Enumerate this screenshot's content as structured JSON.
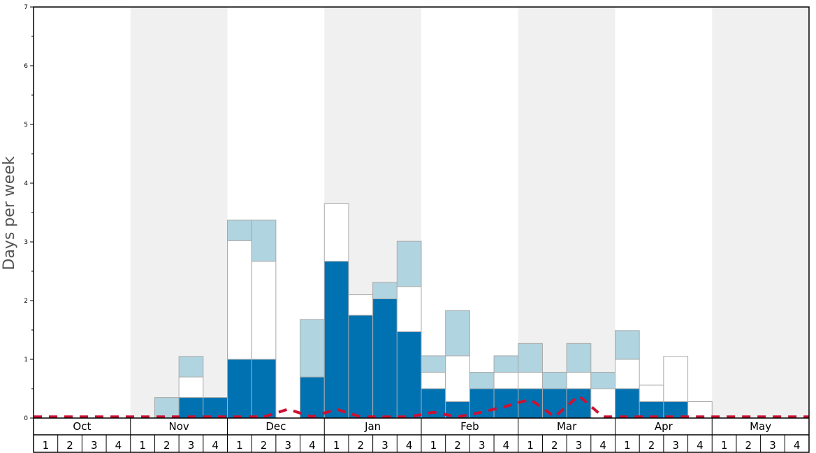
{
  "chart_data": {
    "type": "bar",
    "ylabel": "Days per week",
    "ylim": [
      0,
      7
    ],
    "yticks": [
      0,
      1,
      2,
      3,
      4,
      5,
      6,
      7
    ],
    "months": [
      "Oct",
      "Nov",
      "Dec",
      "Jan",
      "Feb",
      "Mar",
      "Apr",
      "May"
    ],
    "week_labels": [
      "1",
      "2",
      "3",
      "4"
    ],
    "grid": false,
    "colors": {
      "dark_blue": "#0072b2",
      "white": "#ffffff",
      "light_blue": "#b0d4e0",
      "band": "#f0f0f0",
      "dashed_line": "#cc1133"
    },
    "series": [
      {
        "color": "dark_blue",
        "values": [
          0,
          0,
          0,
          0,
          0,
          0,
          0.35,
          0.35,
          1.0,
          1.0,
          0,
          0.7,
          2.67,
          1.75,
          2.03,
          1.47,
          0.5,
          0.28,
          0.5,
          0.5,
          0.5,
          0.5,
          0.5,
          0,
          0.5,
          0.28,
          0.28,
          0,
          0,
          0,
          0,
          0
        ]
      },
      {
        "color": "white",
        "values": [
          0,
          0,
          0,
          0,
          0,
          0,
          0.35,
          0,
          2.02,
          1.67,
          0,
          0,
          0.98,
          0.35,
          0,
          0.77,
          0.28,
          0.78,
          0,
          0.28,
          0.28,
          0,
          0.28,
          0.5,
          0.5,
          0.28,
          0.77,
          0.28,
          0,
          0,
          0,
          0
        ]
      },
      {
        "color": "light_blue",
        "values": [
          0,
          0,
          0,
          0,
          0,
          0.35,
          0.35,
          0,
          0.35,
          0.7,
          0,
          0.98,
          0,
          0,
          0.28,
          0.77,
          0.28,
          0.77,
          0.28,
          0.28,
          0.49,
          0.28,
          0.49,
          0.28,
          0.49,
          0,
          0,
          0,
          0,
          0,
          0,
          0
        ]
      }
    ],
    "line": {
      "style": "dashed",
      "color": "dashed_line",
      "values": [
        0.02,
        0.02,
        0.02,
        0.02,
        0.02,
        0.02,
        0.02,
        0.02,
        0.02,
        0.02,
        0.15,
        0.02,
        0.15,
        0.02,
        0.02,
        0.02,
        0.1,
        0.02,
        0.1,
        0.2,
        0.32,
        0.02,
        0.38,
        0.02,
        0.02,
        0.02,
        0.02,
        0.02,
        0.02,
        0.02,
        0.02,
        0.02
      ]
    }
  }
}
